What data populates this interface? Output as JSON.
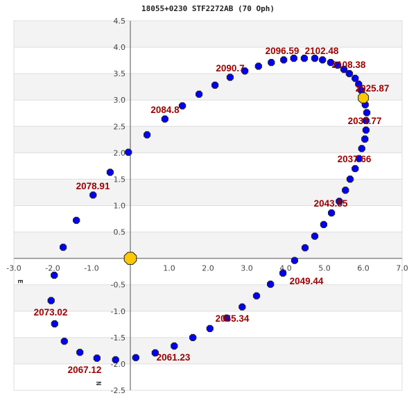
{
  "chart_data": {
    "type": "scatter",
    "title": "18055+0230 STF2272AB (70 Oph)",
    "xlabel": "",
    "ylabel": "",
    "xlim": [
      -3.0,
      7.0
    ],
    "ylim": [
      -2.5,
      4.5
    ],
    "grid": true,
    "x_ticks": [
      "-3.0",
      "-2.0",
      "-1.0",
      "1.0",
      "2.0",
      "3.0",
      "4.0",
      "5.0",
      "6.0",
      "7.0"
    ],
    "y_ticks": [
      "4.5",
      "4.0",
      "3.5",
      "3.0",
      "2.5",
      "2.0",
      "1.5",
      "1.0",
      "0.5",
      "-0.5",
      "-1.0",
      "-1.5",
      "-2.0",
      "-2.5"
    ],
    "direction_labels": {
      "east": "E",
      "north": "N"
    },
    "primary_star": {
      "x": 0,
      "y": 0
    },
    "current_position": {
      "x": 6.0,
      "y": 3.04,
      "epoch": "2025.87"
    },
    "orbit_points": [
      [
        -0.05,
        2.01
      ],
      [
        0.43,
        2.34
      ],
      [
        0.89,
        2.64
      ],
      [
        1.34,
        2.89
      ],
      [
        1.77,
        3.11
      ],
      [
        2.18,
        3.28
      ],
      [
        2.57,
        3.43
      ],
      [
        2.95,
        3.55
      ],
      [
        3.3,
        3.64
      ],
      [
        3.63,
        3.71
      ],
      [
        3.95,
        3.76
      ],
      [
        4.21,
        3.79
      ],
      [
        4.48,
        3.79
      ],
      [
        4.75,
        3.79
      ],
      [
        4.95,
        3.76
      ],
      [
        5.16,
        3.71
      ],
      [
        5.34,
        3.66
      ],
      [
        5.5,
        3.58
      ],
      [
        5.64,
        3.5
      ],
      [
        5.79,
        3.41
      ],
      [
        5.88,
        3.3
      ],
      [
        5.95,
        3.18
      ],
      [
        6.05,
        2.91
      ],
      [
        6.09,
        2.76
      ],
      [
        6.07,
        2.61
      ],
      [
        6.07,
        2.43
      ],
      [
        6.04,
        2.26
      ],
      [
        5.96,
        2.08
      ],
      [
        5.89,
        1.89
      ],
      [
        5.79,
        1.7
      ],
      [
        5.66,
        1.5
      ],
      [
        5.54,
        1.29
      ],
      [
        5.38,
        1.08
      ],
      [
        5.18,
        0.86
      ],
      [
        4.98,
        0.64
      ],
      [
        4.75,
        0.42
      ],
      [
        4.5,
        0.2
      ],
      [
        4.23,
        -0.04
      ],
      [
        3.93,
        -0.28
      ],
      [
        3.61,
        -0.49
      ],
      [
        3.25,
        -0.71
      ],
      [
        2.88,
        -0.92
      ],
      [
        2.48,
        -1.13
      ],
      [
        2.05,
        -1.33
      ],
      [
        1.61,
        -1.5
      ],
      [
        1.13,
        -1.66
      ],
      [
        0.64,
        -1.79
      ],
      [
        0.14,
        -1.88
      ],
      [
        -0.38,
        -1.92
      ],
      [
        -0.86,
        -1.89
      ],
      [
        -1.3,
        -1.78
      ],
      [
        -1.7,
        -1.57
      ],
      [
        -1.95,
        -1.24
      ],
      [
        -2.04,
        -0.8
      ],
      [
        -1.96,
        -0.32
      ],
      [
        -1.73,
        0.21
      ],
      [
        -1.39,
        0.72
      ],
      [
        -0.96,
        1.2
      ],
      [
        -0.52,
        1.63
      ]
    ],
    "epoch_labels": [
      "2025.87",
      "2031.77",
      "2037.66",
      "2043.55",
      "2049.44",
      "2055.34",
      "2061.23",
      "2067.12",
      "2073.02",
      "2078.91",
      "2084.8",
      "2090.7",
      "2096.59",
      "2102.48",
      "2108.38"
    ],
    "colors": {
      "points": "#0000ff",
      "labels": "#990000",
      "stars": "#ffc800",
      "band": "#f3f3f3",
      "axis": "#888888"
    }
  }
}
